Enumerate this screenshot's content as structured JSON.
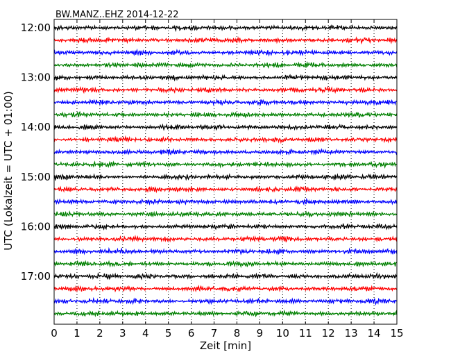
{
  "chart_data": {
    "type": "line",
    "title": "BW.MANZ..EHZ 2014-12-22",
    "xlabel": "Zeit  [min]",
    "ylabel": "UTC (Lokalzeit = UTC + 01:00)",
    "xlim": [
      0,
      15
    ],
    "x_ticks": [
      "0",
      "1",
      "2",
      "3",
      "4",
      "5",
      "6",
      "7",
      "8",
      "9",
      "10",
      "11",
      "12",
      "13",
      "14",
      "15"
    ],
    "y_tick_labels": [
      "12:00",
      "13:00",
      "14:00",
      "15:00",
      "16:00",
      "17:00"
    ],
    "row_interval_min": 15,
    "grid": "vertical-dotted",
    "line_colors": [
      "#000000",
      "#ff0000",
      "#0000ff",
      "#008000"
    ],
    "series": [
      {
        "start": "12:00"
      },
      {
        "start": "12:15"
      },
      {
        "start": "12:30"
      },
      {
        "start": "12:45"
      },
      {
        "start": "13:00"
      },
      {
        "start": "13:15"
      },
      {
        "start": "13:30"
      },
      {
        "start": "13:45"
      },
      {
        "start": "14:00"
      },
      {
        "start": "14:15"
      },
      {
        "start": "14:30"
      },
      {
        "start": "14:45"
      },
      {
        "start": "15:00"
      },
      {
        "start": "15:15"
      },
      {
        "start": "15:30"
      },
      {
        "start": "15:45"
      },
      {
        "start": "16:00"
      },
      {
        "start": "16:15"
      },
      {
        "start": "16:30"
      },
      {
        "start": "16:45"
      },
      {
        "start": "17:00"
      },
      {
        "start": "17:15"
      },
      {
        "start": "17:30"
      },
      {
        "start": "17:45"
      }
    ]
  }
}
